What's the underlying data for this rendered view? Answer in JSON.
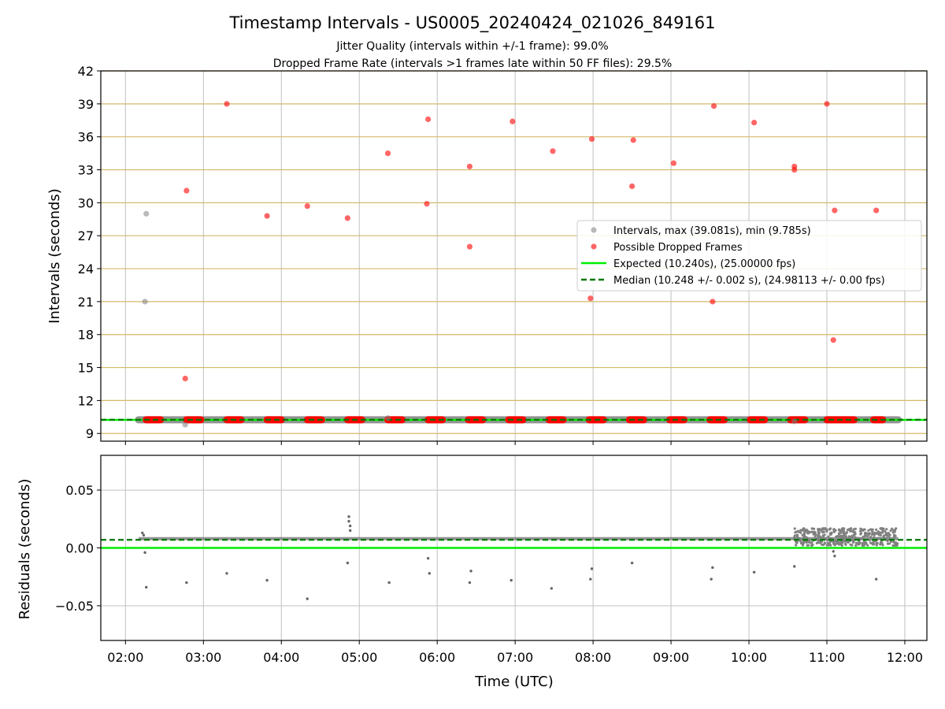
{
  "figure": {
    "title": "Timestamp Intervals - US0005_20240424_021026_849161",
    "subtitle_1": "Jitter Quality (intervals within +/-1 frame): 99.0%",
    "subtitle_2": "Dropped Frame Rate (intervals >1 frames late within 50 FF files): 29.5%"
  },
  "colors": {
    "expected": "#00ee00",
    "median": "#007700",
    "dropped": "#ff0000",
    "intervals": "#808080",
    "hgrid": "#d4b96a",
    "grid": "#c0c0c0"
  },
  "chart_data": [
    {
      "type": "scatter",
      "ylabel": "Intervals (seconds)",
      "xlim": [
        "01:41",
        "12:17"
      ],
      "ylim": [
        8.3,
        42
      ],
      "yticks": [
        "9",
        "12",
        "15",
        "18",
        "21",
        "24",
        "27",
        "30",
        "33",
        "36",
        "39",
        "42"
      ],
      "grid": true,
      "legend_position": "center-right",
      "legend": [
        {
          "label": "Intervals, max (39.081s), min (9.785s)",
          "kind": "dot-gray"
        },
        {
          "label": "Possible Dropped Frames",
          "kind": "dot-red"
        },
        {
          "label": "Expected (10.240s), (25.00000 fps)",
          "kind": "line-solid"
        },
        {
          "label": "Median (10.248 +/- 0.002 s), (24.98113 +/- 0.00 fps)",
          "kind": "line-dashed"
        }
      ],
      "expected": 10.24,
      "median": 10.248,
      "interval_band": {
        "from": "02:10",
        "to": "11:55",
        "value": 10.248
      },
      "gray_points": [
        [
          "02:16",
          29.0
        ],
        [
          "02:15",
          21.0
        ],
        [
          "02:46",
          9.8
        ],
        [
          "05:22",
          10.4
        ],
        [
          "10:35",
          10.1
        ]
      ],
      "dropped_clusters": [
        [
          "02:16",
          "02:27"
        ],
        [
          "02:47",
          "02:58"
        ],
        [
          "03:18",
          "03:29"
        ],
        [
          "03:49",
          "04:00"
        ],
        [
          "04:20",
          "04:31"
        ],
        [
          "04:51",
          "05:02"
        ],
        [
          "05:22",
          "05:33"
        ],
        [
          "05:53",
          "06:04"
        ],
        [
          "06:24",
          "06:35"
        ],
        [
          "06:55",
          "07:06"
        ],
        [
          "07:26",
          "07:37"
        ],
        [
          "07:57",
          "08:08"
        ],
        [
          "08:28",
          "08:39"
        ],
        [
          "08:59",
          "09:10"
        ],
        [
          "09:30",
          "09:41"
        ],
        [
          "10:01",
          "10:12"
        ],
        [
          "10:32",
          "10:43"
        ],
        [
          "11:00",
          "11:21"
        ],
        [
          "11:36",
          "11:43"
        ]
      ],
      "dropped_points": [
        [
          "02:47",
          31.1
        ],
        [
          "02:46",
          14.0
        ],
        [
          "03:18",
          39.0
        ],
        [
          "03:49",
          28.8
        ],
        [
          "04:20",
          29.7
        ],
        [
          "04:51",
          28.6
        ],
        [
          "05:22",
          34.5
        ],
        [
          "05:53",
          37.6
        ],
        [
          "05:52",
          29.9
        ],
        [
          "06:25",
          33.3
        ],
        [
          "06:25",
          26.0
        ],
        [
          "06:58",
          37.4
        ],
        [
          "07:29",
          34.7
        ],
        [
          "07:59",
          35.8
        ],
        [
          "07:58",
          21.3
        ],
        [
          "08:31",
          35.7
        ],
        [
          "08:30",
          31.5
        ],
        [
          "09:02",
          33.6
        ],
        [
          "09:33",
          38.8
        ],
        [
          "09:32",
          21.0
        ],
        [
          "10:04",
          37.3
        ],
        [
          "10:35",
          33.3
        ],
        [
          "10:35",
          33.0
        ],
        [
          "11:00",
          39.0
        ],
        [
          "11:06",
          29.3
        ],
        [
          "11:05",
          17.5
        ],
        [
          "11:38",
          29.3
        ]
      ]
    },
    {
      "type": "scatter",
      "ylabel": "Residuals (seconds)",
      "xlabel": "Time (UTC)",
      "xlim": [
        "01:41",
        "12:17"
      ],
      "ylim": [
        -0.08,
        0.08
      ],
      "yticks": [
        "−0.05",
        "0.00",
        "0.05"
      ],
      "xticks": [
        "02:00",
        "03:00",
        "04:00",
        "05:00",
        "06:00",
        "07:00",
        "08:00",
        "09:00",
        "10:00",
        "11:00",
        "12:00"
      ],
      "grid": true,
      "expected_residual": 0.0,
      "median_residual": 0.007,
      "residual_band": {
        "from": "02:10",
        "to": "11:55",
        "value": 0.008
      },
      "outlier_points": [
        [
          "02:13",
          0.013
        ],
        [
          "02:14",
          0.011
        ],
        [
          "02:15",
          -0.004
        ],
        [
          "02:16",
          -0.034
        ],
        [
          "02:47",
          -0.03
        ],
        [
          "03:18",
          -0.022
        ],
        [
          "03:49",
          -0.028
        ],
        [
          "04:20",
          -0.044
        ],
        [
          "04:51",
          -0.013
        ],
        [
          "04:52",
          0.027
        ],
        [
          "04:52",
          0.023
        ],
        [
          "04:53",
          0.019
        ],
        [
          "04:53",
          0.015
        ],
        [
          "05:23",
          -0.03
        ],
        [
          "05:53",
          -0.009
        ],
        [
          "05:54",
          -0.022
        ],
        [
          "06:25",
          -0.03
        ],
        [
          "06:26",
          -0.02
        ],
        [
          "06:57",
          -0.028
        ],
        [
          "07:28",
          -0.035
        ],
        [
          "07:58",
          -0.027
        ],
        [
          "07:59",
          -0.018
        ],
        [
          "08:30",
          -0.013
        ],
        [
          "09:31",
          -0.027
        ],
        [
          "09:32",
          -0.017
        ],
        [
          "10:04",
          -0.021
        ],
        [
          "10:35",
          -0.016
        ],
        [
          "11:05",
          -0.003
        ],
        [
          "11:06",
          -0.007
        ],
        [
          "11:38",
          -0.027
        ]
      ],
      "noisy_band": {
        "from": "10:35",
        "to": "11:55",
        "min": 0.002,
        "max": 0.017
      }
    }
  ]
}
